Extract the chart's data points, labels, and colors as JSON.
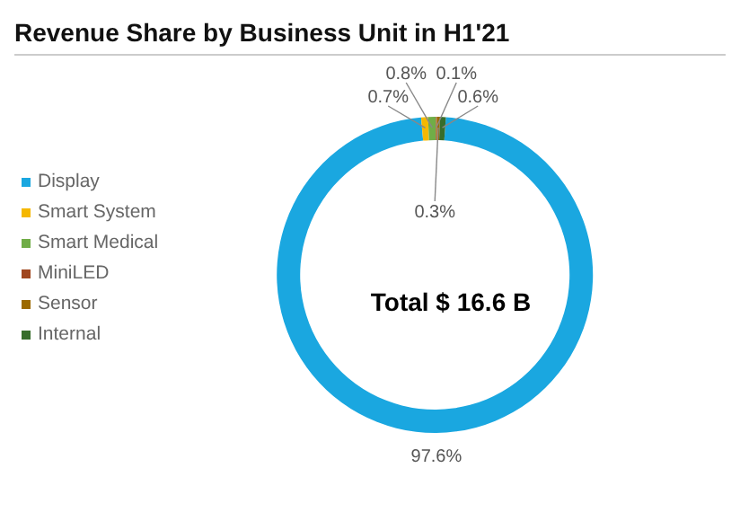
{
  "chart_data": {
    "type": "donut",
    "title": "Revenue Share by Business Unit in H1'21",
    "categories": [
      "Display",
      "Smart System",
      "Smart Medical",
      "MiniLED",
      "Sensor",
      "Internal"
    ],
    "values": [
      97.6,
      0.7,
      0.8,
      0.1,
      0.3,
      0.6
    ],
    "colors": [
      "#1aa7e0",
      "#f5b800",
      "#70ad47",
      "#a0461e",
      "#9c6a00",
      "#376d2b"
    ],
    "value_labels": [
      "97.6%",
      "0.7%",
      "0.8%",
      "0.1%",
      "0.3%",
      "0.6%"
    ],
    "legend": "left",
    "annotations": [
      "Total $ 16.6 B"
    ]
  }
}
